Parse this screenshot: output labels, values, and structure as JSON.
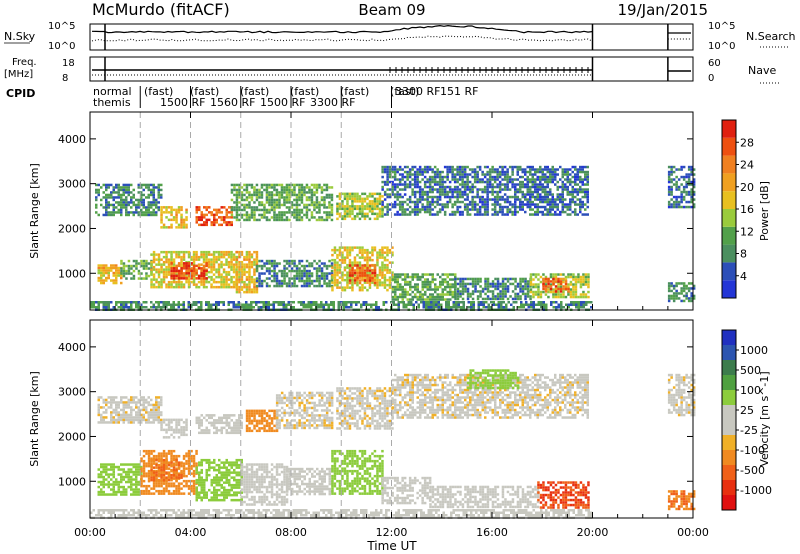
{
  "header": {
    "station": "McMurdo (fitACF)",
    "beam": "Beam 09",
    "date": "19/Jan/2015"
  },
  "aux_panels": {
    "nsky_label": "N.Sky",
    "nsky_ticks": [
      "10^5",
      "10^0"
    ],
    "nsearch_label": "N.Search",
    "nsearch_ticks": [
      "10^5",
      "10^0"
    ],
    "freq_label": "Freq.",
    "freq_unit": "[MHz]",
    "freq_ticks": [
      "18",
      "8"
    ],
    "nave_label": "Nave",
    "nave_ticks": [
      "60",
      "0"
    ],
    "cpid_label": "CPID",
    "cpid_line1": "normal",
    "cpid_line2": "themis",
    "cpid_fragments": [
      "(fast)",
      "(fast)",
      "(fast)",
      "(fast)",
      "(fast)",
      "(fast)",
      "3300 RF",
      "151 RF",
      "1500 RF",
      "1560 RF",
      "1500 RF",
      "3300 RF"
    ]
  },
  "colors": {
    "power_scale": [
      "#2436d6",
      "#2c4fb8",
      "#4b8f5f",
      "#52a04a",
      "#9acb3c",
      "#e8c020",
      "#f0a020",
      "#f08020",
      "#ee5010",
      "#e02010"
    ],
    "velocity_scale": [
      "#2030c0",
      "#2c55b0",
      "#3c7c4c",
      "#4fa040",
      "#8ccc3c",
      "#c8c8c0",
      "#c8c8c0",
      "#f0b028",
      "#f08a20",
      "#f06018",
      "#e83010",
      "#e01010"
    ]
  },
  "chart_data": [
    {
      "type": "heatmap",
      "panel": "power",
      "xlabel": "Time UT",
      "ylabel": "Slant Range [km]",
      "x_ticks": [
        "00:00",
        "04:00",
        "08:00",
        "12:00",
        "16:00",
        "20:00",
        "00:00"
      ],
      "x_range_hours": [
        0,
        24
      ],
      "y_ticks": [
        1000,
        2000,
        3000,
        4000
      ],
      "y_range": [
        180,
        4600
      ],
      "colorbar_label": "Power [dB]",
      "colorbar_ticks": [
        "4",
        "8",
        "12",
        "16",
        "20",
        "24",
        "28"
      ],
      "colorbar_range": [
        0,
        30
      ],
      "data_gap_hours": [
        20.0,
        23.0
      ],
      "dashed_lines_hours": [
        2.0,
        4.0,
        6.0,
        8.0,
        10.0,
        12.0
      ],
      "regions": [
        {
          "t0": 0.0,
          "t1": 20.0,
          "r0": 200,
          "r1": 380,
          "value": 8
        },
        {
          "t0": 0.3,
          "t1": 1.2,
          "r0": 800,
          "r1": 1200,
          "value": 18
        },
        {
          "t0": 1.2,
          "t1": 2.4,
          "r0": 900,
          "r1": 1300,
          "value": 10
        },
        {
          "t0": 2.4,
          "t1": 5.8,
          "r0": 700,
          "r1": 1500,
          "value": 16
        },
        {
          "t0": 3.2,
          "t1": 4.6,
          "r0": 900,
          "r1": 1250,
          "value": 26
        },
        {
          "t0": 5.8,
          "t1": 6.6,
          "r0": 600,
          "r1": 1500,
          "value": 18
        },
        {
          "t0": 6.6,
          "t1": 9.6,
          "r0": 700,
          "r1": 1300,
          "value": 8
        },
        {
          "t0": 9.6,
          "t1": 12.0,
          "r0": 600,
          "r1": 1600,
          "value": 16
        },
        {
          "t0": 10.3,
          "t1": 11.3,
          "r0": 800,
          "r1": 1200,
          "value": 25
        },
        {
          "t0": 12.0,
          "t1": 14.5,
          "r0": 400,
          "r1": 1000,
          "value": 10
        },
        {
          "t0": 14.5,
          "t1": 17.5,
          "r0": 400,
          "r1": 900,
          "value": 8
        },
        {
          "t0": 17.5,
          "t1": 19.8,
          "r0": 450,
          "r1": 1000,
          "value": 14
        },
        {
          "t0": 18.0,
          "t1": 19.0,
          "r0": 600,
          "r1": 900,
          "value": 24
        },
        {
          "t0": 0.2,
          "t1": 2.8,
          "r0": 2300,
          "r1": 3000,
          "value": 8
        },
        {
          "t0": 2.8,
          "t1": 3.8,
          "r0": 2000,
          "r1": 2500,
          "value": 18
        },
        {
          "t0": 4.2,
          "t1": 5.6,
          "r0": 2100,
          "r1": 2500,
          "value": 25
        },
        {
          "t0": 5.6,
          "t1": 9.6,
          "r0": 2200,
          "r1": 3000,
          "value": 10
        },
        {
          "t0": 9.8,
          "t1": 11.6,
          "r0": 2200,
          "r1": 2800,
          "value": 14
        },
        {
          "t0": 11.6,
          "t1": 19.8,
          "r0": 2300,
          "r1": 3400,
          "value": 6
        },
        {
          "t0": 23.0,
          "t1": 24.0,
          "r0": 400,
          "r1": 800,
          "value": 8
        },
        {
          "t0": 23.0,
          "t1": 24.0,
          "r0": 2500,
          "r1": 3400,
          "value": 6
        }
      ]
    },
    {
      "type": "heatmap",
      "panel": "velocity",
      "xlabel": "Time UT",
      "ylabel": "Slant Range [km]",
      "x_ticks": [
        "00:00",
        "04:00",
        "08:00",
        "12:00",
        "16:00",
        "20:00",
        "00:00"
      ],
      "x_range_hours": [
        0,
        24
      ],
      "y_ticks": [
        1000,
        2000,
        3000,
        4000
      ],
      "y_range": [
        180,
        4600
      ],
      "colorbar_label": "Velocity [m s^-1]",
      "colorbar_ticks": [
        "1000",
        "500",
        "100",
        "25",
        "-25",
        "-100",
        "-500",
        "-1000"
      ],
      "data_gap_hours": [
        20.0,
        23.0
      ],
      "dashed_lines_hours": [
        2.0,
        4.0,
        6.0,
        8.0,
        10.0,
        12.0
      ],
      "regions": [
        {
          "t0": 0.0,
          "t1": 20.0,
          "r0": 200,
          "r1": 380,
          "value": 25
        },
        {
          "t0": 0.3,
          "t1": 2.0,
          "r0": 700,
          "r1": 1400,
          "value": 200
        },
        {
          "t0": 2.0,
          "t1": 4.2,
          "r0": 700,
          "r1": 1700,
          "value": -150
        },
        {
          "t0": 2.4,
          "t1": 3.6,
          "r0": 1000,
          "r1": 1500,
          "value": -300
        },
        {
          "t0": 4.2,
          "t1": 6.0,
          "r0": 600,
          "r1": 1500,
          "value": 150
        },
        {
          "t0": 6.0,
          "t1": 7.8,
          "r0": 500,
          "r1": 1400,
          "value": 60
        },
        {
          "t0": 7.8,
          "t1": 9.6,
          "r0": 700,
          "r1": 1300,
          "value": 25
        },
        {
          "t0": 9.6,
          "t1": 11.6,
          "r0": 700,
          "r1": 1700,
          "value": 200
        },
        {
          "t0": 11.6,
          "t1": 13.5,
          "r0": 500,
          "r1": 1100,
          "value": 60
        },
        {
          "t0": 13.5,
          "t1": 17.8,
          "r0": 400,
          "r1": 900,
          "value": 30
        },
        {
          "t0": 17.8,
          "t1": 19.8,
          "r0": 400,
          "r1": 1000,
          "value": -500
        },
        {
          "t0": 0.3,
          "t1": 2.8,
          "r0": 2300,
          "r1": 2900,
          "value": 0
        },
        {
          "t0": 2.8,
          "t1": 3.8,
          "r0": 2000,
          "r1": 2400,
          "value": 60
        },
        {
          "t0": 4.2,
          "t1": 6.0,
          "r0": 2100,
          "r1": 2500,
          "value": 30
        },
        {
          "t0": 6.2,
          "t1": 7.4,
          "r0": 2100,
          "r1": 2600,
          "value": -150
        },
        {
          "t0": 7.4,
          "t1": 9.6,
          "r0": 2200,
          "r1": 3000,
          "value": 0
        },
        {
          "t0": 9.8,
          "t1": 12.0,
          "r0": 2200,
          "r1": 3100,
          "value": 0
        },
        {
          "t0": 12.0,
          "t1": 19.8,
          "r0": 2400,
          "r1": 3400,
          "value": 0
        },
        {
          "t0": 15.0,
          "t1": 17.0,
          "r0": 3100,
          "r1": 3500,
          "value": 150
        },
        {
          "t0": 23.0,
          "t1": 24.0,
          "r0": 400,
          "r1": 800,
          "value": -300
        },
        {
          "t0": 23.0,
          "t1": 24.0,
          "r0": 2500,
          "r1": 3400,
          "value": 0
        }
      ]
    }
  ]
}
